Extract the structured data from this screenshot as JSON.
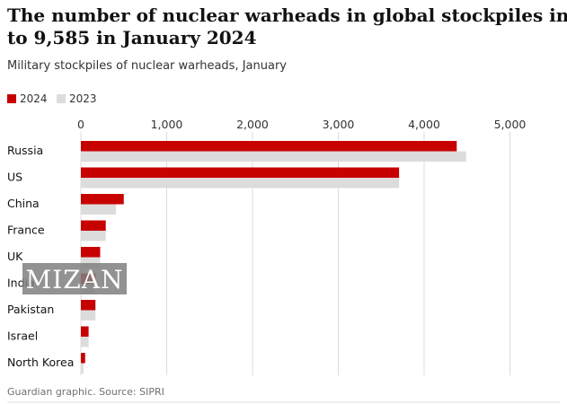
{
  "chart_data": {
    "type": "bar",
    "orientation": "horizontal",
    "title_line1": "The number of nuclear warheads in global stockpiles increased",
    "title_line2": "to 9,585 in January 2024",
    "subtitle": "Military stockpiles of nuclear warheads, January",
    "categories": [
      "Russia",
      "US",
      "China",
      "France",
      "UK",
      "India",
      "Pakistan",
      "Israel",
      "North Korea"
    ],
    "series": [
      {
        "name": "2024",
        "color": "#c70000",
        "values": [
          4380,
          3708,
          500,
          290,
          225,
          172,
          170,
          90,
          50
        ]
      },
      {
        "name": "2023",
        "color": "#dcdcdc",
        "values": [
          4489,
          3708,
          410,
          290,
          225,
          164,
          170,
          90,
          30
        ]
      }
    ],
    "x_ticks": [
      0,
      1000,
      2000,
      3000,
      4000,
      5000
    ],
    "x_tick_labels": [
      "0",
      "1,000",
      "2,000",
      "3,000",
      "4,000",
      "5,000"
    ],
    "xlim": [
      0,
      5200
    ],
    "grid": true,
    "source": "Guardian graphic. Source: SIPRI"
  },
  "watermark": {
    "text": "MIZAN",
    "color": "#7f7f7f"
  }
}
